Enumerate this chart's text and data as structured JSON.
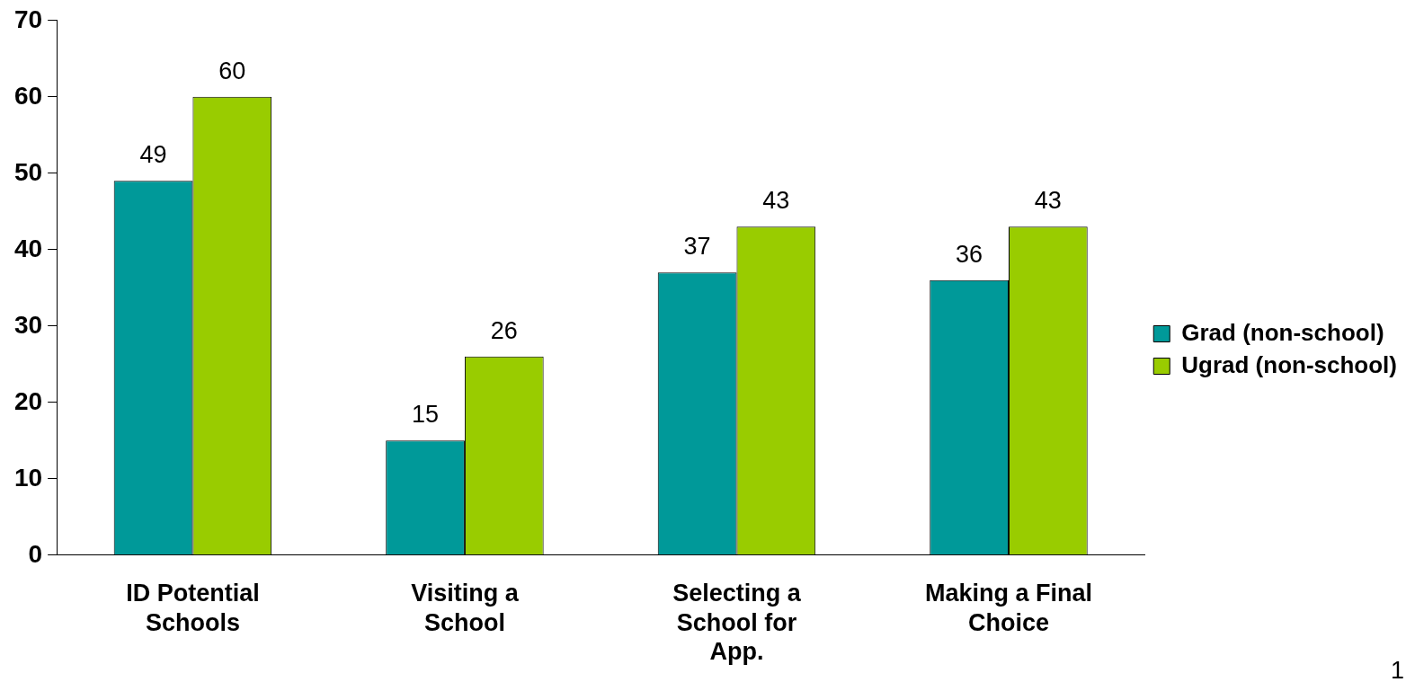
{
  "chart_data": {
    "type": "bar",
    "categories": [
      "ID Potential Schools",
      "Visiting a School",
      "Selecting a School for App.",
      "Making a Final Choice"
    ],
    "series": [
      {
        "name": "Grad (non-school)",
        "color": "#009999",
        "values": [
          49,
          15,
          37,
          36
        ]
      },
      {
        "name": "Ugrad (non-school)",
        "color": "#99cc00",
        "values": [
          60,
          26,
          43,
          43
        ]
      }
    ],
    "ylim": [
      0,
      70
    ],
    "yticks": [
      0,
      10,
      20,
      30,
      40,
      50,
      60,
      70
    ],
    "grid": false,
    "legend": "right",
    "data_labels": true,
    "annotations": [
      "1"
    ]
  }
}
